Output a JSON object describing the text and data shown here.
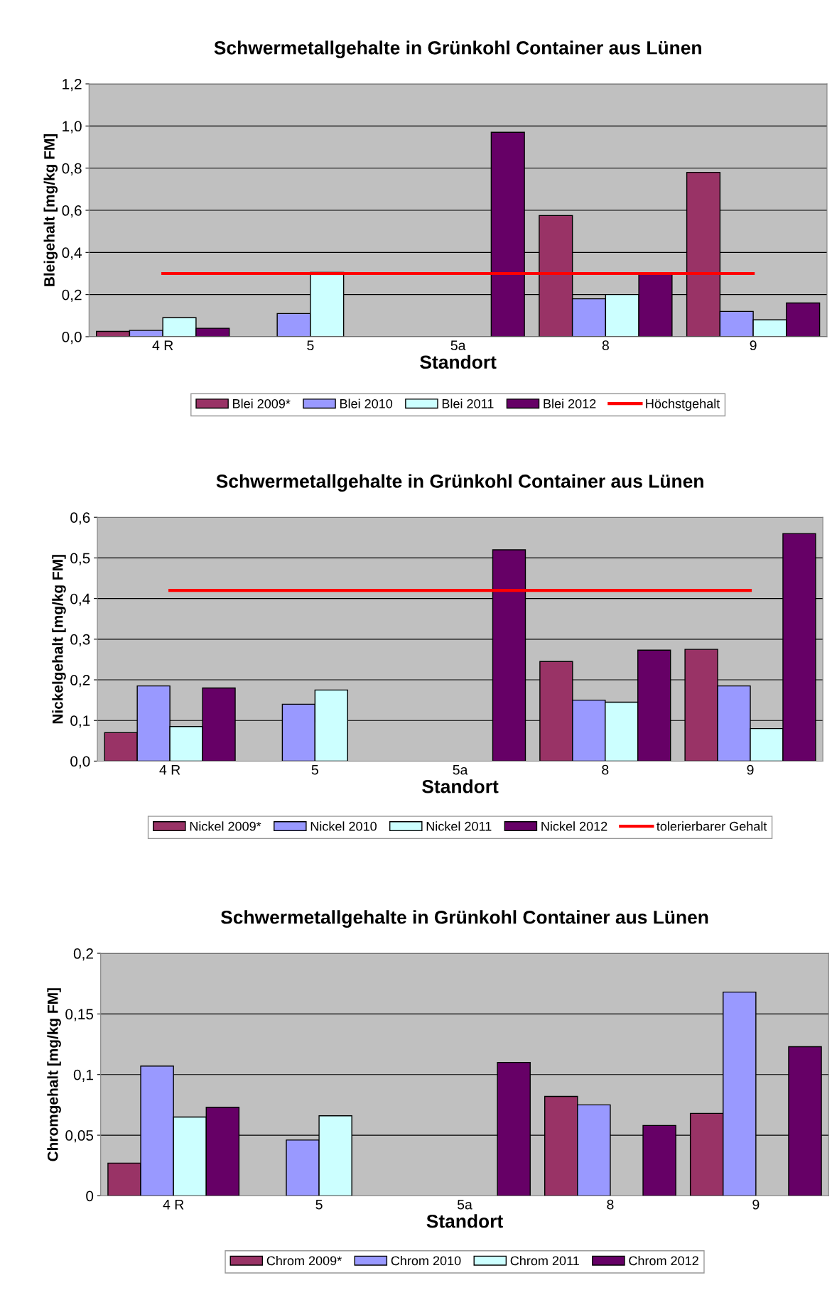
{
  "chart_data": [
    {
      "type": "bar",
      "title": "Schwermetallgehalte in Grünkohl Container aus Lünen",
      "xlabel": "Standort",
      "ylabel": "Bleigehalt [mg/kg FM]",
      "categories": [
        "4 R",
        "5",
        "5a",
        "8",
        "9"
      ],
      "series": [
        {
          "name": "Blei 2009*",
          "color": "#993366",
          "values": [
            0.025,
            null,
            null,
            0.575,
            0.78
          ]
        },
        {
          "name": "Blei 2010",
          "color": "#9999ff",
          "values": [
            0.03,
            0.11,
            null,
            0.18,
            0.12
          ]
        },
        {
          "name": "Blei 2011",
          "color": "#ccffff",
          "values": [
            0.09,
            0.305,
            null,
            0.2,
            0.08
          ]
        },
        {
          "name": "Blei 2012",
          "color": "#660066",
          "values": [
            0.04,
            null,
            0.97,
            0.3,
            0.16
          ]
        },
        {
          "name": "Höchstgehalt",
          "color": "#ff0000",
          "type": "line",
          "values": [
            0.3,
            0.3,
            0.3,
            0.3,
            0.3
          ]
        }
      ],
      "ylim": [
        0,
        1.2
      ],
      "yticks": [
        {
          "value": 0,
          "label": "0,0"
        },
        {
          "value": 0.2,
          "label": "0,2"
        },
        {
          "value": 0.4,
          "label": "0,4"
        },
        {
          "value": 0.6,
          "label": "0,6"
        },
        {
          "value": 0.8,
          "label": "0,8"
        },
        {
          "value": 1.0,
          "label": "1,0"
        },
        {
          "value": 1.2,
          "label": "1,2"
        }
      ],
      "grid": "y",
      "legend": "bottom"
    },
    {
      "type": "bar",
      "title": "Schwermetallgehalte in Grünkohl Container aus Lünen",
      "xlabel": "Standort",
      "ylabel": "Nickelgehalt [mg/kg FM]",
      "categories": [
        "4 R",
        "5",
        "5a",
        "8",
        "9"
      ],
      "series": [
        {
          "name": "Nickel 2009*",
          "color": "#993366",
          "values": [
            0.07,
            null,
            null,
            0.245,
            0.275
          ]
        },
        {
          "name": "Nickel 2010",
          "color": "#9999ff",
          "values": [
            0.185,
            0.14,
            null,
            0.15,
            0.185
          ]
        },
        {
          "name": "Nickel 2011",
          "color": "#ccffff",
          "values": [
            0.085,
            0.175,
            null,
            0.145,
            0.08
          ]
        },
        {
          "name": "Nickel 2012",
          "color": "#660066",
          "values": [
            0.18,
            null,
            0.52,
            0.273,
            0.56
          ]
        },
        {
          "name": "tolerierbarer Gehalt",
          "color": "#ff0000",
          "type": "line",
          "values": [
            0.42,
            0.42,
            0.42,
            0.42,
            0.42
          ]
        }
      ],
      "ylim": [
        0,
        0.6
      ],
      "yticks": [
        {
          "value": 0,
          "label": "0,0"
        },
        {
          "value": 0.1,
          "label": "0,1"
        },
        {
          "value": 0.2,
          "label": "0,2"
        },
        {
          "value": 0.3,
          "label": "0,3"
        },
        {
          "value": 0.4,
          "label": "0,4"
        },
        {
          "value": 0.5,
          "label": "0,5"
        },
        {
          "value": 0.6,
          "label": "0,6"
        }
      ],
      "grid": "y",
      "legend": "bottom"
    },
    {
      "type": "bar",
      "title": "Schwermetallgehalte in Grünkohl Container aus Lünen",
      "xlabel": "Standort",
      "ylabel": "Chromgehalt [mg/kg FM]",
      "categories": [
        "4 R",
        "5",
        "5a",
        "8",
        "9"
      ],
      "series": [
        {
          "name": "Chrom 2009*",
          "color": "#993366",
          "values": [
            0.027,
            null,
            null,
            0.082,
            0.068
          ]
        },
        {
          "name": "Chrom 2010",
          "color": "#9999ff",
          "values": [
            0.107,
            0.046,
            null,
            0.075,
            0.168
          ]
        },
        {
          "name": "Chrom 2011",
          "color": "#ccffff",
          "values": [
            0.065,
            0.066,
            null,
            null,
            null
          ]
        },
        {
          "name": "Chrom 2012",
          "color": "#660066",
          "values": [
            0.073,
            null,
            0.11,
            0.058,
            0.123
          ]
        }
      ],
      "ylim": [
        0,
        0.2
      ],
      "yticks": [
        0,
        {
          "value": 0.05,
          "label": "0,05"
        },
        {
          "value": 0.1,
          "label": "0,1"
        },
        {
          "value": 0.15,
          "label": "0,15"
        },
        {
          "value": 0.2,
          "label": "0,2"
        }
      ],
      "grid": "y",
      "legend": "bottom"
    }
  ]
}
